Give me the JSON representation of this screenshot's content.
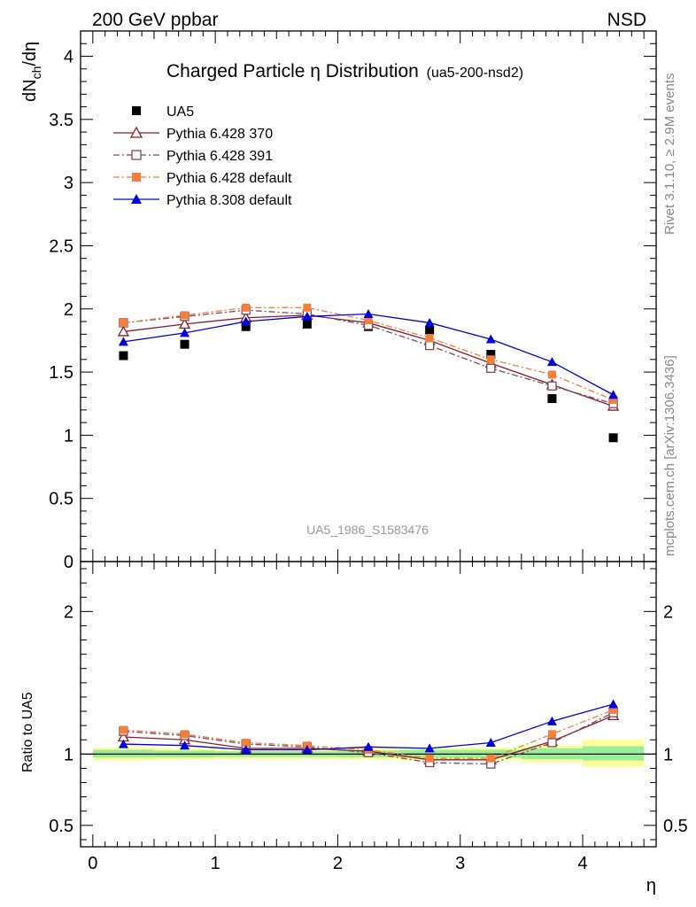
{
  "header": {
    "left": "200 GeV ppbar",
    "right": "NSD"
  },
  "title": {
    "main": "Charged Particle η Distribution",
    "sub": "(ua5-200-nsd2)"
  },
  "side_text": {
    "rivet": "Rivet 3.1.10, ≥ 2.9M events",
    "site": "mcplots.cern.ch [arXiv:1306.3436]"
  },
  "watermark": "UA5_1986_S1583476",
  "colors": {
    "ua5": "#000000",
    "p6_370": "#8b1a2b",
    "p6_391": "#7a4a5e",
    "p6_default": "#f47f3a",
    "p8_default": "#0000dd",
    "band_yellow": "#ffff99",
    "band_green": "#99ee99"
  },
  "chart_data": [
    {
      "type": "scatter",
      "panel": "main",
      "ylabel": "dNch/dη",
      "xlim": [
        -0.1,
        4.6
      ],
      "ylim": [
        0,
        4.2
      ],
      "x": [
        0.25,
        0.75,
        1.25,
        1.75,
        2.25,
        2.75,
        3.25,
        3.75,
        4.25
      ],
      "y_ticks": [
        "0",
        "0.5",
        "1",
        "1.5",
        "2",
        "2.5",
        "3",
        "3.5",
        "4"
      ],
      "legend_position": "top-left",
      "series": [
        {
          "name": "UA5",
          "style": "data",
          "values": [
            1.63,
            1.72,
            1.86,
            1.88,
            1.86,
            1.83,
            1.64,
            1.29,
            0.98
          ]
        },
        {
          "name": "Pythia 6.428 370",
          "style": "solid",
          "marker": "open-triangle",
          "values": [
            1.82,
            1.88,
            1.93,
            1.95,
            1.89,
            1.75,
            1.57,
            1.4,
            1.23
          ]
        },
        {
          "name": "Pythia 6.428 391",
          "style": "dash-dot",
          "marker": "open-square",
          "values": [
            1.89,
            1.94,
            1.99,
            1.96,
            1.87,
            1.71,
            1.53,
            1.39,
            1.25
          ]
        },
        {
          "name": "Pythia 6.428 default",
          "style": "dash-dot",
          "marker": "filled-square",
          "values": [
            1.89,
            1.95,
            2.01,
            2.01,
            1.91,
            1.77,
            1.6,
            1.48,
            1.28
          ]
        },
        {
          "name": "Pythia 8.308 default",
          "style": "solid",
          "marker": "filled-triangle",
          "values": [
            1.74,
            1.81,
            1.9,
            1.94,
            1.96,
            1.89,
            1.76,
            1.58,
            1.32
          ]
        }
      ]
    },
    {
      "type": "line",
      "panel": "ratio",
      "ylabel": "Ratio to UA5",
      "xlabel": "η",
      "xlim": [
        -0.1,
        4.6
      ],
      "ylim": [
        0.35,
        2.35
      ],
      "x_ticks": [
        "0",
        "1",
        "2",
        "3",
        "4"
      ],
      "y_ticks": [
        "0.5",
        "1",
        "2"
      ],
      "bands": {
        "edges": [
          0,
          0.5,
          1,
          1.5,
          2,
          2.5,
          3,
          3.5,
          4,
          4.5
        ],
        "yellow": [
          [
            0.955,
            1.045
          ],
          [
            0.96,
            1.04
          ],
          [
            0.965,
            1.035
          ],
          [
            0.965,
            1.035
          ],
          [
            0.96,
            1.04
          ],
          [
            0.955,
            1.045
          ],
          [
            0.955,
            1.045
          ],
          [
            0.94,
            1.06
          ],
          [
            0.91,
            1.1
          ]
        ],
        "green": [
          [
            0.975,
            1.03
          ],
          [
            0.978,
            1.025
          ],
          [
            0.98,
            1.02
          ],
          [
            0.98,
            1.02
          ],
          [
            0.978,
            1.025
          ],
          [
            0.975,
            1.03
          ],
          [
            0.975,
            1.03
          ],
          [
            0.965,
            1.04
          ],
          [
            0.955,
            1.055
          ]
        ]
      },
      "x": [
        0.25,
        0.75,
        1.25,
        1.75,
        2.25,
        2.75,
        3.25,
        3.75,
        4.25
      ],
      "series": [
        {
          "name": "Pythia 6.428 370",
          "values": [
            1.12,
            1.1,
            1.04,
            1.04,
            1.02,
            0.96,
            0.96,
            1.09,
            1.27
          ]
        },
        {
          "name": "Pythia 6.428 391",
          "values": [
            1.16,
            1.13,
            1.07,
            1.05,
            1.01,
            0.94,
            0.93,
            1.08,
            1.29
          ]
        },
        {
          "name": "Pythia 6.428 default",
          "values": [
            1.17,
            1.14,
            1.08,
            1.06,
            1.03,
            0.97,
            0.97,
            1.14,
            1.31
          ]
        },
        {
          "name": "Pythia 8.308 default",
          "values": [
            1.07,
            1.06,
            1.03,
            1.03,
            1.05,
            1.04,
            1.08,
            1.23,
            1.35
          ]
        }
      ]
    }
  ]
}
